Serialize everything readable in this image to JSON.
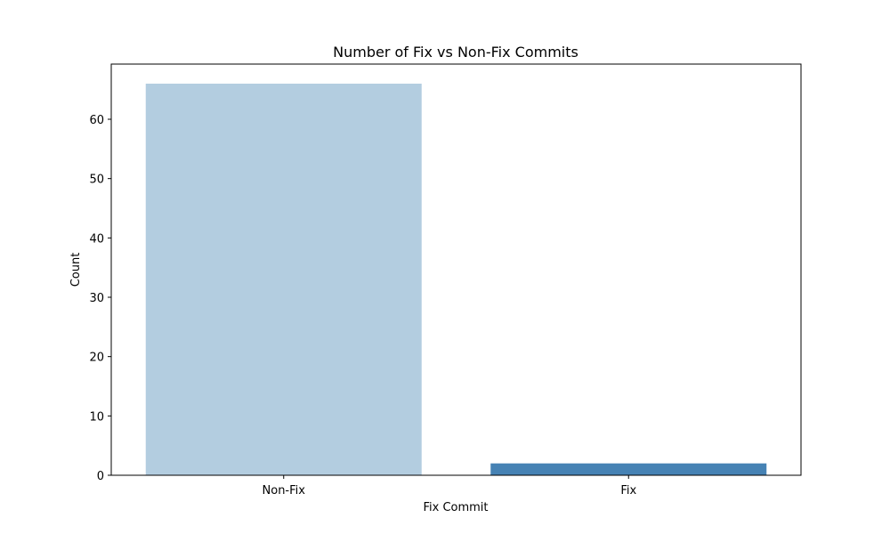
{
  "chart_data": {
    "type": "bar",
    "title": "Number of Fix vs Non-Fix Commits",
    "xlabel": "Fix Commit",
    "ylabel": "Count",
    "categories": [
      "Non-Fix",
      "Fix"
    ],
    "values": [
      66,
      2
    ],
    "colors": [
      "#b3cde0",
      "#4682b4"
    ],
    "ylim": [
      0,
      69.3
    ],
    "yticks": [
      0,
      10,
      20,
      30,
      40,
      50,
      60
    ],
    "grid": false,
    "legend": "none"
  }
}
